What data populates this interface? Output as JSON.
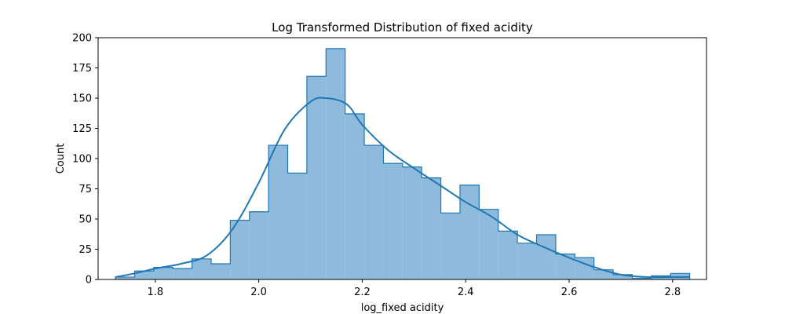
{
  "chart_data": {
    "type": "histogram",
    "title": "Log Transformed Distribution of fixed acidity",
    "xlabel": "log_fixed acidity",
    "ylabel": "Count",
    "xlim": [
      1.6895,
      2.8655
    ],
    "ylim": [
      0,
      200
    ],
    "xticks": [
      "1.8",
      "2.0",
      "2.2",
      "2.4",
      "2.6",
      "2.8"
    ],
    "yticks": [
      "0",
      "25",
      "50",
      "75",
      "100",
      "125",
      "150",
      "175",
      "200"
    ],
    "grid": false,
    "legend": "none",
    "bin_edges": [
      1.723,
      1.76,
      1.797,
      1.834,
      1.871,
      1.908,
      1.945,
      1.982,
      2.019,
      2.056,
      2.093,
      2.13,
      2.167,
      2.204,
      2.241,
      2.278,
      2.315,
      2.352,
      2.389,
      2.426,
      2.463,
      2.5,
      2.537,
      2.574,
      2.611,
      2.648,
      2.685,
      2.722,
      2.759,
      2.796,
      2.833
    ],
    "counts": [
      2,
      7,
      10,
      9,
      17,
      13,
      49,
      56,
      111,
      88,
      168,
      191,
      137,
      111,
      96,
      93,
      84,
      55,
      78,
      58,
      40,
      30,
      37,
      21,
      18,
      8,
      4,
      1,
      3,
      5
    ],
    "kde": {
      "x": [
        1.723,
        1.76,
        1.8,
        1.85,
        1.9,
        1.95,
        2.0,
        2.05,
        2.1,
        2.13,
        2.17,
        2.2,
        2.25,
        2.3,
        2.35,
        2.4,
        2.45,
        2.5,
        2.55,
        2.6,
        2.65,
        2.7,
        2.75,
        2.8,
        2.833
      ],
      "y": [
        2,
        5,
        9,
        13,
        20,
        42,
        80,
        124,
        147,
        150,
        145,
        128,
        107,
        92,
        78,
        64,
        52,
        37,
        27,
        18,
        10,
        4,
        2,
        2,
        2
      ]
    },
    "colors": {
      "fill": "#8ebadc",
      "edge": "#1f77b4",
      "kde": "#1f77b4"
    }
  }
}
